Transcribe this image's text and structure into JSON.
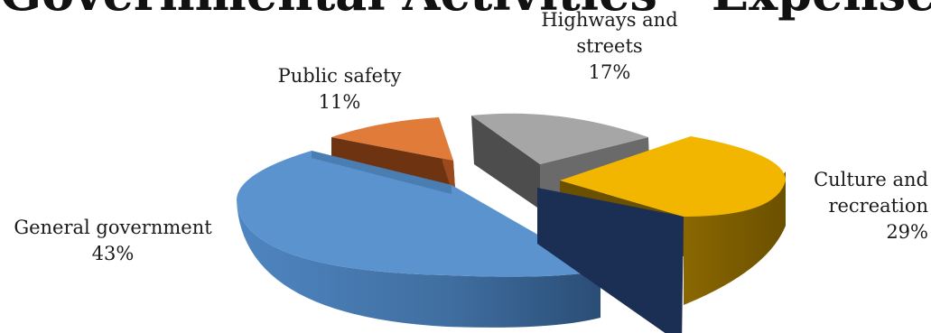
{
  "chart_data": {
    "type": "pie",
    "title": "Governmental Activities - Expenses",
    "slices": [
      {
        "name": "General government",
        "value": 43,
        "value_label": "43%",
        "color": "#5b93cf",
        "exploded": false
      },
      {
        "name": "Public safety",
        "value": 11,
        "value_label": "11%",
        "color": "#e07b39",
        "exploded": true
      },
      {
        "name": "Highways and streets",
        "value": 17,
        "value_label": "17%",
        "color": "#a5a5a5",
        "exploded": true
      },
      {
        "name": "Culture and recreation",
        "value": 29,
        "value_label": "29%",
        "color": "#f2b600",
        "exploded": true
      }
    ],
    "style": "3d-exploded",
    "legend": "none"
  },
  "labels": {
    "general_government": [
      "General government"
    ],
    "public_safety": [
      "Public safety"
    ],
    "highways": [
      "Highways and",
      "streets"
    ],
    "culture": [
      "Culture and",
      "recreation"
    ]
  }
}
